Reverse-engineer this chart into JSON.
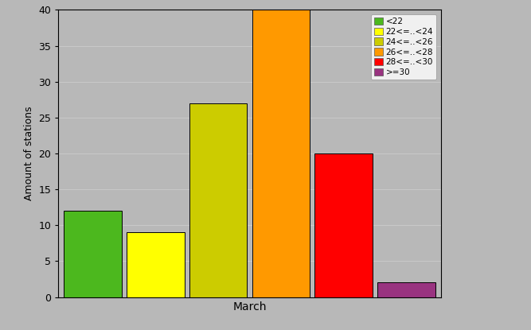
{
  "categories": [
    "<22",
    "22<=..<24",
    "24<=..<26",
    "26<=..<28",
    "28<=..<30",
    ">=30"
  ],
  "values": [
    12,
    9,
    27,
    40,
    20,
    2
  ],
  "colors": [
    "#4cb81e",
    "#ffff00",
    "#cccc00",
    "#ff9900",
    "#ff0000",
    "#993380"
  ],
  "xlabel": "March",
  "ylabel": "Amount of stations",
  "ylim": [
    0,
    40
  ],
  "yticks": [
    0,
    5,
    10,
    15,
    20,
    25,
    30,
    35,
    40
  ],
  "background_color": "#b8b8b8",
  "bar_edge_color": "#000000",
  "grid_color": "#d8d8d8",
  "figsize": [
    6.67,
    4.15
  ],
  "dpi": 100
}
